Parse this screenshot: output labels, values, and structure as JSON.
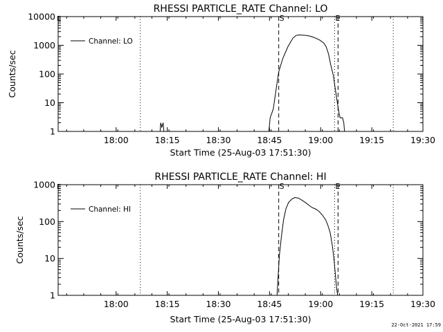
{
  "chart_data": [
    {
      "type": "line",
      "title": "RHESSI PARTICLE_RATE Channel: LO",
      "xlabel": "Start Time (25-Aug-03 17:51:30)",
      "ylabel": "Counts/sec",
      "yscale": "log",
      "ylim": [
        1,
        10000
      ],
      "y_ticks": [
        1,
        10,
        100,
        1000,
        10000
      ],
      "y_tick_labels": [
        "1",
        "10",
        "100",
        "1000",
        "10000"
      ],
      "xlim_min": [
        -8.5,
        98.5
      ],
      "x_ticks_min": [
        8.5,
        23.5,
        38.5,
        53.5,
        68.5,
        83.5,
        98.5
      ],
      "x_tick_labels": [
        "18:00",
        "18:15",
        "18:30",
        "18:45",
        "19:00",
        "19:15",
        "19:30"
      ],
      "x_unit": "minutes since 17:51:30",
      "legend": {
        "label": "Channel: LO",
        "position": "top-left"
      },
      "markers": [
        {
          "x": 15.6,
          "style": "dotted",
          "label": ""
        },
        {
          "x": 56.2,
          "style": "dashed",
          "label": "S"
        },
        {
          "x": 72.6,
          "style": "dotted",
          "label": "E"
        },
        {
          "x": 73.6,
          "style": "dashed",
          "label": ""
        },
        {
          "x": 89.8,
          "style": "dotted",
          "label": ""
        }
      ],
      "corner_label": "E",
      "series": [
        {
          "name": "Channel: LO",
          "segments": [
            {
              "x": [
                21.4,
                21.6,
                21.9,
                22.3,
                22.5
              ],
              "y": [
                1,
                2,
                1.4,
                2,
                1
              ]
            },
            {
              "x": [
                53.3,
                53.7,
                54.6,
                55.6,
                56.2,
                57.4,
                58.9,
                60.4,
                61.3,
                62.2,
                63.3,
                64.3,
                65.3,
                66.4,
                67.4,
                68.3,
                69.4,
                70.1,
                70.8,
                71.5,
                72.2,
                72.8,
                73.4,
                73.8,
                74.2,
                74.5,
                74.9,
                75.3,
                75.5
              ],
              "y": [
                1,
                3,
                6,
                40,
                120,
                350,
                900,
                1800,
                2200,
                2300,
                2250,
                2200,
                2100,
                1900,
                1700,
                1500,
                1200,
                900,
                500,
                200,
                90,
                30,
                10,
                5,
                3,
                3,
                3,
                2,
                1
              ]
            }
          ]
        }
      ]
    },
    {
      "type": "line",
      "title": "RHESSI PARTICLE_RATE Channel: HI",
      "xlabel": "Start Time (25-Aug-03 17:51:30)",
      "ylabel": "Counts/sec",
      "yscale": "log",
      "ylim": [
        1,
        1000
      ],
      "y_ticks": [
        1,
        10,
        100,
        1000
      ],
      "y_tick_labels": [
        "1",
        "10",
        "100",
        "1000"
      ],
      "xlim_min": [
        -8.5,
        98.5
      ],
      "x_ticks_min": [
        8.5,
        23.5,
        38.5,
        53.5,
        68.5,
        83.5,
        98.5
      ],
      "x_tick_labels": [
        "18:00",
        "18:15",
        "18:30",
        "18:45",
        "19:00",
        "19:15",
        "19:30"
      ],
      "x_unit": "minutes since 17:51:30",
      "legend": {
        "label": "Channel: HI",
        "position": "top-left"
      },
      "markers": [
        {
          "x": 15.6,
          "style": "dotted",
          "label": ""
        },
        {
          "x": 56.2,
          "style": "dashed",
          "label": "S"
        },
        {
          "x": 72.6,
          "style": "dotted",
          "label": "E"
        },
        {
          "x": 73.6,
          "style": "dashed",
          "label": ""
        },
        {
          "x": 89.8,
          "style": "dotted",
          "label": ""
        }
      ],
      "corner_label": "E",
      "series": [
        {
          "name": "Channel: HI",
          "segments": [
            {
              "x": [
                55.7,
                56.0,
                56.4,
                57.0,
                57.6,
                58.3,
                59.1,
                60.1,
                61.0,
                62.0,
                63.0,
                64.0,
                65.0,
                66.0,
                67.0,
                68.0,
                69.0,
                70.0,
                70.6,
                71.3,
                72.0,
                72.5,
                72.9,
                73.2,
                73.5
              ],
              "y": [
                1,
                3,
                12,
                40,
                110,
                220,
                330,
                410,
                450,
                430,
                380,
                330,
                280,
                240,
                220,
                190,
                150,
                110,
                80,
                50,
                20,
                8,
                3,
                1.5,
                1
              ]
            }
          ]
        }
      ]
    }
  ],
  "footer_timestamp": "22-Oct-2021 17:59"
}
